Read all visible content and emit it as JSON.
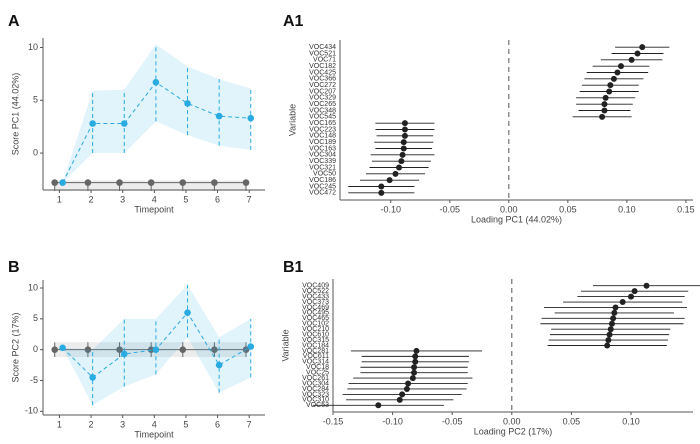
{
  "chart_data": [
    {
      "type": "line",
      "panel": "A",
      "xlabel": "Timepoint",
      "ylabel": "Score PC1 (44.02%)",
      "xlim": [
        0.48,
        7.5
      ],
      "ylim": [
        -3.5,
        10.9
      ],
      "xticks": [
        1,
        2,
        3,
        4,
        5,
        6,
        7
      ],
      "yticks": [
        0,
        5,
        10
      ],
      "series": [
        {
          "color": "#666666",
          "dashed": false,
          "x": [
            0.85,
            1.9,
            2.9,
            3.9,
            4.9,
            5.9,
            6.9
          ],
          "values": [
            -2.8,
            -2.8,
            -2.8,
            -2.8,
            -2.8,
            -2.8,
            -2.8
          ],
          "lower": [
            -3.6,
            -3.6,
            -3.6,
            -3.6,
            -3.6,
            -3.6,
            -3.6
          ],
          "upper": [
            -2.6,
            -2.6,
            -2.6,
            -2.6,
            -2.6,
            -2.6,
            -2.6
          ]
        },
        {
          "color": "#29abe2",
          "dashed": true,
          "x": [
            1.1,
            2.05,
            3.05,
            4.05,
            5.05,
            6.05,
            7.05
          ],
          "values": [
            -2.8,
            2.8,
            2.8,
            6.7,
            4.7,
            3.5,
            3.3
          ],
          "lower": [
            -2.8,
            0,
            0,
            3,
            1.7,
            0.7,
            0.3
          ],
          "upper": [
            -2.8,
            5.9,
            6,
            10.3,
            8.2,
            7,
            6.1
          ]
        }
      ]
    },
    {
      "type": "dot",
      "panel": "A1",
      "xlabel": "Loading PC1 (44.02%)",
      "ylabel": "Variable",
      "xlim": [
        -0.143,
        0.156
      ],
      "xticks": [
        {
          "value": -0.1,
          "label": "-0.10"
        },
        -0.05,
        {
          "value": 0,
          "label": "0.00"
        },
        0.05,
        {
          "value": 0.1,
          "label": "0.10"
        },
        0.15
      ],
      "reference_line": 0,
      "categories": [
        "VOC434",
        "VOC521",
        "VOC71",
        "VOC182",
        "VOC425",
        "VOC366",
        "VOC272",
        "VOC207",
        "VOC329",
        "VOC265",
        "VOC348",
        "VOC545",
        "VOC165",
        "VOC223",
        "VOC148",
        "VOC189",
        "VOC163",
        "VOC304",
        "VOC339",
        "VOC321",
        "VOC50",
        "VOC186",
        "VOC245",
        "VOC472"
      ],
      "values": [
        0.113,
        0.109,
        0.104,
        0.095,
        0.092,
        0.089,
        0.086,
        0.085,
        0.082,
        0.081,
        0.081,
        0.079,
        -0.088,
        -0.088,
        -0.088,
        -0.089,
        -0.089,
        -0.09,
        -0.091,
        -0.093,
        -0.096,
        -0.101,
        -0.108,
        -0.108
      ],
      "errors": [
        0.023,
        0.022,
        0.026,
        0.024,
        0.026,
        0.025,
        0.024,
        0.025,
        0.025,
        0.024,
        0.022,
        0.025,
        0.025,
        0.025,
        0.024,
        0.025,
        0.024,
        0.027,
        0.025,
        0.025,
        0.025,
        0.025,
        0.028,
        0.028
      ],
      "color": "#222222"
    },
    {
      "type": "line",
      "panel": "B",
      "xlabel": "Timepoint",
      "ylabel": "Score PC2 (17%)",
      "xlim": [
        0.48,
        7.5
      ],
      "ylim": [
        -10.6,
        11.3
      ],
      "xticks": [
        1,
        2,
        3,
        4,
        5,
        6,
        7
      ],
      "yticks": [
        -10,
        -5,
        0,
        5,
        10
      ],
      "series": [
        {
          "color": "#666666",
          "dashed": false,
          "x": [
            0.85,
            1.9,
            2.9,
            3.9,
            4.9,
            5.9,
            6.9
          ],
          "values": [
            0,
            0,
            0,
            0,
            0,
            0,
            0
          ],
          "lower": [
            -1.2,
            -1.2,
            -1.2,
            -1.2,
            -1.2,
            -1.2,
            -1.2
          ],
          "upper": [
            1.2,
            1.2,
            1.2,
            1.2,
            1.2,
            1.2,
            1.2
          ]
        },
        {
          "color": "#29abe2",
          "dashed": true,
          "x": [
            1.1,
            2.05,
            3.05,
            4.05,
            5.05,
            6.05,
            7.05
          ],
          "values": [
            0.3,
            -4.5,
            -0.7,
            0,
            6,
            -2.5,
            0.5
          ],
          "lower": [
            0.3,
            -9,
            -6,
            -4,
            2,
            -7,
            -4.5
          ],
          "upper": [
            0.3,
            0,
            5,
            5,
            10.5,
            2,
            5
          ]
        }
      ]
    },
    {
      "type": "dot",
      "panel": "B1",
      "xlabel": "Loading PC2 (17%)",
      "ylabel": "Variable",
      "xlim": [
        -0.15,
        0.152
      ],
      "xticks": [
        -0.15,
        {
          "value": -0.1,
          "label": "-0.10"
        },
        -0.05,
        {
          "value": 0,
          "label": "0.00"
        },
        0.05,
        {
          "value": 0.1,
          "label": "0.10"
        }
      ],
      "reference_line": 0,
      "categories": [
        "VOC409",
        "VOC522",
        "VOC433",
        "VOC373",
        "VOC469",
        "VOC495",
        "VOC465",
        "VOC102",
        "VOC210",
        "VOC610",
        "VOC315",
        "VOC184",
        "VOC281",
        "VOC611",
        "VOC314",
        "VOC18",
        "VOC25",
        "VOC261",
        "VOC304",
        "VOC284",
        "VOC323",
        "VOC310",
        "VOC53"
      ],
      "values": [
        0.113,
        0.103,
        0.1,
        0.093,
        0.087,
        0.086,
        0.085,
        0.084,
        0.083,
        0.082,
        0.081,
        0.08,
        -0.08,
        -0.081,
        -0.081,
        -0.082,
        -0.082,
        -0.083,
        -0.087,
        -0.088,
        -0.092,
        -0.094,
        -0.112
      ],
      "errors": [
        0.045,
        0.045,
        0.045,
        0.05,
        0.06,
        0.05,
        0.06,
        0.06,
        0.05,
        0.05,
        0.05,
        0.05,
        0.055,
        0.045,
        0.045,
        0.045,
        0.045,
        0.05,
        0.05,
        0.05,
        0.05,
        0.045,
        0.055
      ],
      "color": "#222222"
    }
  ]
}
